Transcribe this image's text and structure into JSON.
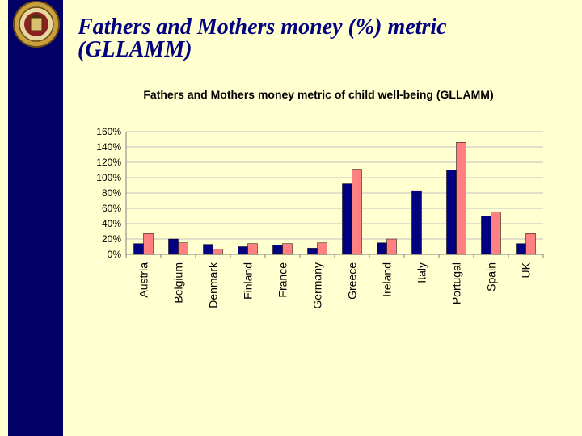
{
  "slide": {
    "title_line1": "Fathers and Mothers money (%) metric",
    "title_line2": "(GLLAMM)",
    "logo_icon": "university-seal-icon"
  },
  "colors": {
    "background": "#ffffd0",
    "sidebar": "#000066",
    "title": "#000080",
    "series1": "#000080",
    "series2": "#ff8080",
    "grid": "#c0c0c0"
  },
  "chart_data": {
    "type": "bar",
    "title": "Fathers and Mothers money metric of child well-being (GLLAMM)",
    "xlabel": "",
    "ylabel": "",
    "categories": [
      "Austria",
      "Belgium",
      "Denmark",
      "Finland",
      "France",
      "Germany",
      "Greece",
      "Ireland",
      "Italy",
      "Portugal",
      "Spain",
      "UK"
    ],
    "series": [
      {
        "values": [
          14,
          20,
          13,
          10,
          12,
          8,
          92,
          15,
          83,
          110,
          50,
          14
        ]
      },
      {
        "values": [
          27,
          15,
          7,
          14,
          14,
          15,
          111,
          20,
          0,
          146,
          55,
          27
        ]
      }
    ],
    "ylim": [
      0,
      160
    ],
    "yticks": [
      "0%",
      "20%",
      "40%",
      "60%",
      "80%",
      "100%",
      "120%",
      "140%",
      "160%"
    ],
    "grid": true,
    "legend": "none"
  }
}
